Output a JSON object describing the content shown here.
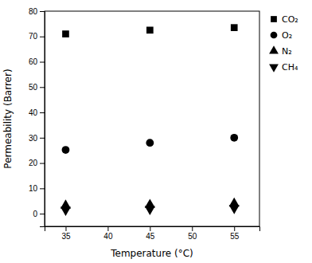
{
  "chart_data": {
    "type": "scatter",
    "xlabel": "Temperature (°C)",
    "ylabel": "Permeability (Barrer)",
    "xlim": [
      32.5,
      58
    ],
    "ylim": [
      -5,
      80
    ],
    "xticks": [
      35,
      40,
      45,
      50,
      55
    ],
    "yticks": [
      0,
      10,
      20,
      30,
      40,
      50,
      60,
      70,
      80
    ],
    "x": [
      35,
      45,
      55
    ],
    "series": [
      {
        "name": "CO₂",
        "marker": "square",
        "color": "black",
        "values": [
          71.0,
          72.5,
          73.5
        ]
      },
      {
        "name": "O₂",
        "marker": "circle",
        "color": "black",
        "values": [
          25.2,
          28.0,
          30.0
        ]
      },
      {
        "name": "N₂",
        "marker": "triangle-up",
        "color": "black",
        "values": [
          3.2,
          3.5,
          4.0
        ]
      },
      {
        "name": "CH₄",
        "marker": "triangle-down",
        "color": "black",
        "values": [
          1.5,
          1.8,
          2.2
        ]
      }
    ],
    "legend": "right"
  }
}
